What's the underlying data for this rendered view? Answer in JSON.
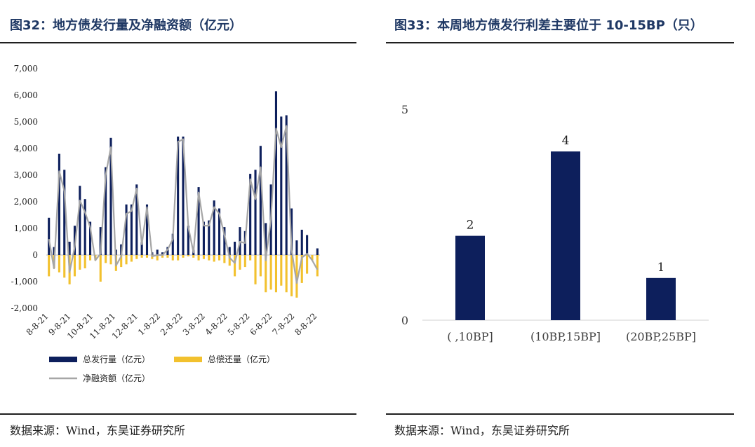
{
  "left": {
    "title": "图32：地方债发行量及净融资额（亿元）",
    "source": "数据来源：Wind，东吴证券研究所"
  },
  "right": {
    "title": "图33：本周地方债发行利差主要位于 10-15BP（只）",
    "source": "数据来源：Wind，东吴证券研究所"
  },
  "chart_data": [
    {
      "type": "bar",
      "title": "地方债发行量及净融资额（亿元）",
      "ylim": [
        -2000,
        7000
      ],
      "y_ticks": [
        -2000,
        -1000,
        0,
        1000,
        2000,
        3000,
        4000,
        5000,
        6000,
        7000
      ],
      "y_tick_labels": [
        "-2,000",
        "-1,000",
        "0",
        "1,000",
        "2,000",
        "3,000",
        "4,000",
        "5,000",
        "6,000",
        "7,000"
      ],
      "x_tick_labels": [
        "8-8-21",
        "9-8-21",
        "10-8-21",
        "11-8-21",
        "12-8-21",
        "1-8-22",
        "2-8-22",
        "3-8-22",
        "4-8-22",
        "5-8-22",
        "6-8-22",
        "7-8-22",
        "8-8-22"
      ],
      "legend": "bottom",
      "grid": false,
      "colors": {
        "issuance": "#0d1f5c",
        "repayment": "#f2c12e",
        "net": "#a6a6a6"
      },
      "series": [
        {
          "name": "总发行量（亿元）",
          "kind": "bar",
          "values": [
            1400,
            300,
            3800,
            3200,
            500,
            1100,
            2600,
            2100,
            1250,
            0,
            1050,
            3300,
            4400,
            200,
            400,
            1900,
            1900,
            2650,
            500,
            1900,
            100,
            200,
            100,
            300,
            800,
            4450,
            4450,
            1100,
            200,
            2550,
            1250,
            1300,
            2050,
            1750,
            1050,
            300,
            500,
            1050,
            900,
            3050,
            3200,
            4100,
            1200,
            2650,
            6150,
            5200,
            5250,
            1750,
            550,
            950,
            750,
            0,
            250
          ]
        },
        {
          "name": "总偿还量（亿元）",
          "kind": "bar",
          "values": [
            -800,
            -500,
            -650,
            -850,
            -1100,
            -800,
            -550,
            -500,
            -200,
            -200,
            -1000,
            -300,
            -350,
            -600,
            -450,
            -350,
            -250,
            -150,
            -100,
            -100,
            -150,
            -200,
            -100,
            -100,
            -200,
            -200,
            -100,
            -50,
            -100,
            -200,
            -150,
            -200,
            -250,
            -200,
            -300,
            -400,
            -800,
            -550,
            -450,
            -200,
            -1100,
            -800,
            -1400,
            -1300,
            -1400,
            -1150,
            -1400,
            -1550,
            -1600,
            -1050,
            -700,
            -200,
            -800
          ]
        },
        {
          "name": "净融资额（亿元）",
          "kind": "line",
          "values": [
            600,
            -500,
            3150,
            2400,
            -650,
            300,
            2050,
            1600,
            1050,
            -200,
            50,
            3000,
            4050,
            -400,
            -50,
            1550,
            1650,
            2500,
            400,
            1800,
            -50,
            0,
            0,
            200,
            600,
            4250,
            4350,
            1050,
            100,
            2350,
            1100,
            1100,
            1800,
            1550,
            750,
            -100,
            -300,
            500,
            450,
            2850,
            2100,
            3300,
            -200,
            1350,
            4750,
            4050,
            4850,
            200,
            -1050,
            -100,
            50,
            -200,
            -550
          ]
        }
      ]
    },
    {
      "type": "bar",
      "title": "本周地方债发行利差主要位于 10-15BP（只）",
      "categories": [
        "( ,10BP]",
        "(10BP,15BP]",
        "(20BP,25BP]"
      ],
      "values": [
        2,
        4,
        1
      ],
      "data_labels": [
        "2",
        "4",
        "1"
      ],
      "ylim": [
        0,
        5
      ],
      "y_ticks": [
        0,
        5
      ],
      "y_tick_labels": [
        "0",
        "5"
      ],
      "grid": false,
      "colors": {
        "bar": "#0d1f5c"
      }
    }
  ]
}
